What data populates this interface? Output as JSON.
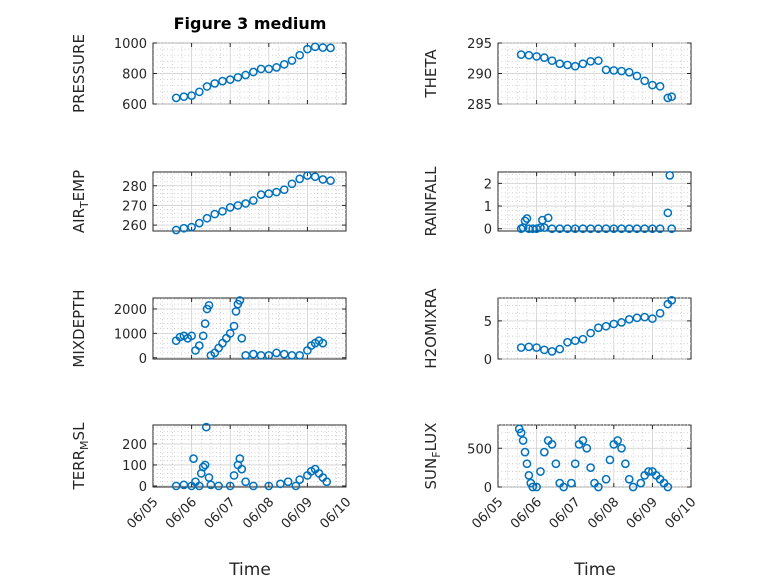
{
  "figure": {
    "title": "Figure 3 medium",
    "x_axis_label": "Time",
    "marker_color": "#0072BD",
    "marker_style": "open-circle"
  },
  "chart_data": [
    {
      "type": "scatter",
      "ylabel": "PRESSURE",
      "xlim": [
        "06/05",
        "06/10"
      ],
      "xticks": [
        "06/05",
        "06/06",
        "06/07",
        "06/08",
        "06/09",
        "06/10"
      ],
      "ylim": [
        600,
        1000
      ],
      "yticks": [
        600,
        800,
        1000
      ],
      "grid": true,
      "minor_grid": true,
      "points": [
        [
          5.6,
          640
        ],
        [
          5.8,
          648
        ],
        [
          6.0,
          655
        ],
        [
          6.2,
          680
        ],
        [
          6.4,
          715
        ],
        [
          6.6,
          735
        ],
        [
          6.8,
          750
        ],
        [
          7.0,
          760
        ],
        [
          7.2,
          775
        ],
        [
          7.4,
          790
        ],
        [
          7.6,
          810
        ],
        [
          7.8,
          830
        ],
        [
          8.0,
          830
        ],
        [
          8.2,
          840
        ],
        [
          8.4,
          860
        ],
        [
          8.6,
          885
        ],
        [
          8.8,
          920
        ],
        [
          9.0,
          960
        ],
        [
          9.2,
          975
        ],
        [
          9.4,
          970
        ],
        [
          9.6,
          968
        ]
      ]
    },
    {
      "type": "scatter",
      "ylabel": "THETA",
      "xlim": [
        "06/05",
        "06/10"
      ],
      "xticks": [
        "06/05",
        "06/06",
        "06/07",
        "06/08",
        "06/09",
        "06/10"
      ],
      "ylim": [
        285,
        295
      ],
      "yticks": [
        285,
        290,
        295
      ],
      "grid": true,
      "minor_grid": true,
      "points": [
        [
          5.6,
          293.1
        ],
        [
          5.8,
          293.0
        ],
        [
          6.0,
          292.8
        ],
        [
          6.2,
          292.6
        ],
        [
          6.4,
          292.1
        ],
        [
          6.6,
          291.6
        ],
        [
          6.8,
          291.4
        ],
        [
          7.0,
          291.2
        ],
        [
          7.2,
          291.6
        ],
        [
          7.4,
          292.0
        ],
        [
          7.6,
          292.1
        ],
        [
          7.8,
          290.6
        ],
        [
          8.0,
          290.5
        ],
        [
          8.2,
          290.4
        ],
        [
          8.4,
          290.2
        ],
        [
          8.6,
          289.6
        ],
        [
          8.8,
          288.8
        ],
        [
          9.0,
          288.1
        ],
        [
          9.2,
          287.9
        ],
        [
          9.4,
          286.0
        ],
        [
          9.5,
          286.2
        ]
      ]
    },
    {
      "type": "scatter",
      "ylabel": "AIR_TEMP",
      "ylabel_parts": [
        "AIR",
        "T",
        "EMP"
      ],
      "xlim": [
        "06/05",
        "06/10"
      ],
      "xticks": [
        "06/05",
        "06/06",
        "06/07",
        "06/08",
        "06/09",
        "06/10"
      ],
      "ylim": [
        257,
        287
      ],
      "yticks": [
        260,
        270,
        280
      ],
      "grid": true,
      "minor_grid": true,
      "points": [
        [
          5.6,
          257.5
        ],
        [
          5.8,
          258.4
        ],
        [
          6.0,
          259.0
        ],
        [
          6.2,
          261.0
        ],
        [
          6.4,
          263.5
        ],
        [
          6.6,
          265.6
        ],
        [
          6.8,
          267.0
        ],
        [
          7.0,
          269.0
        ],
        [
          7.2,
          270.0
        ],
        [
          7.4,
          271.0
        ],
        [
          7.6,
          272.5
        ],
        [
          7.8,
          275.5
        ],
        [
          8.0,
          276.0
        ],
        [
          8.2,
          276.8
        ],
        [
          8.4,
          278.0
        ],
        [
          8.6,
          281.0
        ],
        [
          8.8,
          283.5
        ],
        [
          9.0,
          285.2
        ],
        [
          9.2,
          284.6
        ],
        [
          9.4,
          283.2
        ],
        [
          9.6,
          282.6
        ]
      ]
    },
    {
      "type": "scatter",
      "ylabel": "RAINFALL",
      "xlim": [
        "06/05",
        "06/10"
      ],
      "xticks": [
        "06/05",
        "06/06",
        "06/07",
        "06/08",
        "06/09",
        "06/10"
      ],
      "ylim": [
        -0.1,
        2.5
      ],
      "yticks": [
        0,
        1,
        2
      ],
      "grid": true,
      "minor_grid": true,
      "points": [
        [
          5.6,
          0
        ],
        [
          5.65,
          0.05
        ],
        [
          5.7,
          0.35
        ],
        [
          5.75,
          0.45
        ],
        [
          5.8,
          0
        ],
        [
          5.9,
          0
        ],
        [
          6.0,
          0
        ],
        [
          6.1,
          0.05
        ],
        [
          6.15,
          0.38
        ],
        [
          6.2,
          0.05
        ],
        [
          6.3,
          0.48
        ],
        [
          6.4,
          0
        ],
        [
          6.6,
          0
        ],
        [
          6.8,
          0
        ],
        [
          7.0,
          0
        ],
        [
          7.2,
          0
        ],
        [
          7.4,
          0
        ],
        [
          7.6,
          0
        ],
        [
          7.8,
          0
        ],
        [
          8.0,
          0
        ],
        [
          8.2,
          0
        ],
        [
          8.4,
          0
        ],
        [
          8.6,
          0
        ],
        [
          8.8,
          0
        ],
        [
          9.0,
          0
        ],
        [
          9.2,
          0
        ],
        [
          9.4,
          0.7
        ],
        [
          9.45,
          2.35
        ],
        [
          9.5,
          0
        ]
      ]
    },
    {
      "type": "scatter",
      "ylabel": "MIXDEPTH",
      "xlim": [
        "06/05",
        "06/10"
      ],
      "xticks": [
        "06/05",
        "06/06",
        "06/07",
        "06/08",
        "06/09",
        "06/10"
      ],
      "ylim": [
        -50,
        2450
      ],
      "yticks": [
        0,
        1000,
        2000
      ],
      "grid": true,
      "minor_grid": true,
      "points": [
        [
          5.6,
          700
        ],
        [
          5.7,
          850
        ],
        [
          5.8,
          900
        ],
        [
          5.9,
          800
        ],
        [
          6.0,
          900
        ],
        [
          6.1,
          300
        ],
        [
          6.2,
          500
        ],
        [
          6.3,
          900
        ],
        [
          6.35,
          1400
        ],
        [
          6.4,
          2000
        ],
        [
          6.45,
          2150
        ],
        [
          6.5,
          100
        ],
        [
          6.6,
          200
        ],
        [
          6.7,
          400
        ],
        [
          6.8,
          600
        ],
        [
          6.9,
          800
        ],
        [
          7.0,
          1000
        ],
        [
          7.1,
          1300
        ],
        [
          7.15,
          1900
        ],
        [
          7.2,
          2200
        ],
        [
          7.25,
          2350
        ],
        [
          7.3,
          800
        ],
        [
          7.4,
          100
        ],
        [
          7.6,
          150
        ],
        [
          7.8,
          100
        ],
        [
          8.0,
          100
        ],
        [
          8.2,
          200
        ],
        [
          8.4,
          150
        ],
        [
          8.6,
          100
        ],
        [
          8.8,
          100
        ],
        [
          9.0,
          300
        ],
        [
          9.1,
          500
        ],
        [
          9.2,
          600
        ],
        [
          9.3,
          700
        ],
        [
          9.4,
          600
        ]
      ]
    },
    {
      "type": "scatter",
      "ylabel": "H2OMIXRA",
      "xlim": [
        "06/05",
        "06/10"
      ],
      "xticks": [
        "06/05",
        "06/06",
        "06/07",
        "06/08",
        "06/09",
        "06/10"
      ],
      "ylim": [
        0,
        8
      ],
      "yticks": [
        0,
        5
      ],
      "grid": true,
      "minor_grid": true,
      "points": [
        [
          5.6,
          1.5
        ],
        [
          5.8,
          1.6
        ],
        [
          6.0,
          1.5
        ],
        [
          6.2,
          1.2
        ],
        [
          6.4,
          1.0
        ],
        [
          6.6,
          1.3
        ],
        [
          6.8,
          2.2
        ],
        [
          7.0,
          2.4
        ],
        [
          7.2,
          2.6
        ],
        [
          7.4,
          3.4
        ],
        [
          7.6,
          4.1
        ],
        [
          7.8,
          4.3
        ],
        [
          8.0,
          4.6
        ],
        [
          8.2,
          4.8
        ],
        [
          8.4,
          5.2
        ],
        [
          8.6,
          5.4
        ],
        [
          8.8,
          5.5
        ],
        [
          9.0,
          5.3
        ],
        [
          9.2,
          6.0
        ],
        [
          9.4,
          7.2
        ],
        [
          9.5,
          7.7
        ]
      ]
    },
    {
      "type": "scatter",
      "ylabel": "TERR_MSL",
      "ylabel_parts": [
        "TERR",
        "M",
        "SL"
      ],
      "xlim": [
        "06/05",
        "06/10"
      ],
      "xticks": [
        "06/05",
        "06/06",
        "06/07",
        "06/08",
        "06/09",
        "06/10"
      ],
      "ylim": [
        -5,
        290
      ],
      "yticks": [
        0,
        100,
        200
      ],
      "grid": true,
      "minor_grid": true,
      "points": [
        [
          5.6,
          0
        ],
        [
          5.8,
          5
        ],
        [
          6.0,
          0
        ],
        [
          6.05,
          130
        ],
        [
          6.1,
          20
        ],
        [
          6.2,
          0
        ],
        [
          6.25,
          60
        ],
        [
          6.3,
          90
        ],
        [
          6.35,
          100
        ],
        [
          6.38,
          280
        ],
        [
          6.45,
          40
        ],
        [
          6.5,
          5
        ],
        [
          6.7,
          0
        ],
        [
          7.0,
          0
        ],
        [
          7.1,
          50
        ],
        [
          7.2,
          100
        ],
        [
          7.25,
          130
        ],
        [
          7.3,
          80
        ],
        [
          7.4,
          20
        ],
        [
          7.6,
          0
        ],
        [
          8.0,
          0
        ],
        [
          8.3,
          10
        ],
        [
          8.5,
          20
        ],
        [
          8.7,
          0
        ],
        [
          8.8,
          30
        ],
        [
          9.0,
          50
        ],
        [
          9.1,
          70
        ],
        [
          9.2,
          80
        ],
        [
          9.3,
          60
        ],
        [
          9.4,
          40
        ],
        [
          9.5,
          20
        ]
      ]
    },
    {
      "type": "scatter",
      "ylabel": "SUN_FLUX",
      "ylabel_parts": [
        "SUN",
        "F",
        "LUX"
      ],
      "xlim": [
        "06/05",
        "06/10"
      ],
      "xticks": [
        "06/05",
        "06/06",
        "06/07",
        "06/08",
        "06/09",
        "06/10"
      ],
      "ylim": [
        0,
        800
      ],
      "yticks": [
        0,
        500
      ],
      "grid": true,
      "minor_grid": true,
      "points": [
        [
          5.55,
          750
        ],
        [
          5.6,
          700
        ],
        [
          5.65,
          600
        ],
        [
          5.7,
          450
        ],
        [
          5.75,
          300
        ],
        [
          5.8,
          150
        ],
        [
          5.85,
          50
        ],
        [
          5.9,
          0
        ],
        [
          6.0,
          0
        ],
        [
          6.1,
          200
        ],
        [
          6.2,
          450
        ],
        [
          6.3,
          600
        ],
        [
          6.4,
          550
        ],
        [
          6.5,
          300
        ],
        [
          6.6,
          50
        ],
        [
          6.7,
          0
        ],
        [
          6.9,
          50
        ],
        [
          7.0,
          300
        ],
        [
          7.1,
          550
        ],
        [
          7.2,
          600
        ],
        [
          7.3,
          500
        ],
        [
          7.4,
          250
        ],
        [
          7.5,
          50
        ],
        [
          7.6,
          0
        ],
        [
          7.8,
          100
        ],
        [
          7.9,
          350
        ],
        [
          8.0,
          550
        ],
        [
          8.1,
          600
        ],
        [
          8.2,
          500
        ],
        [
          8.3,
          300
        ],
        [
          8.4,
          100
        ],
        [
          8.5,
          0
        ],
        [
          8.7,
          50
        ],
        [
          8.8,
          150
        ],
        [
          8.9,
          200
        ],
        [
          9.0,
          200
        ],
        [
          9.1,
          150
        ],
        [
          9.2,
          100
        ],
        [
          9.3,
          50
        ],
        [
          9.4,
          0
        ]
      ]
    }
  ]
}
